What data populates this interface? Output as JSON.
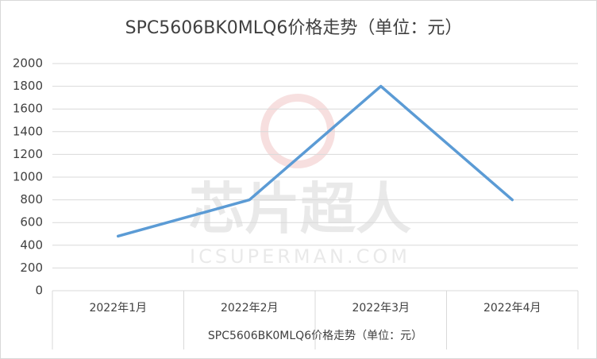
{
  "chart_data": {
    "type": "line",
    "title": "SPC5606BK0MLQ6价格走势（单位：元）",
    "x_label": "SPC5606BK0MLQ6价格走势（单位：元）",
    "categories": [
      "2022年1月",
      "2022年2月",
      "2022年3月",
      "2022年4月"
    ],
    "series": [
      {
        "name": "SPC5606BK0MLQ6价格走势（单位：元）",
        "color": "#5b9bd5",
        "values": [
          480,
          800,
          1800,
          800
        ]
      }
    ],
    "ylim": [
      0,
      2000
    ],
    "yticks": [
      0,
      200,
      400,
      600,
      800,
      1000,
      1200,
      1400,
      1600,
      1800,
      2000
    ],
    "grid": true,
    "watermark": {
      "text": "芯片超人",
      "site": "ICSUPERMAN.COM"
    }
  }
}
